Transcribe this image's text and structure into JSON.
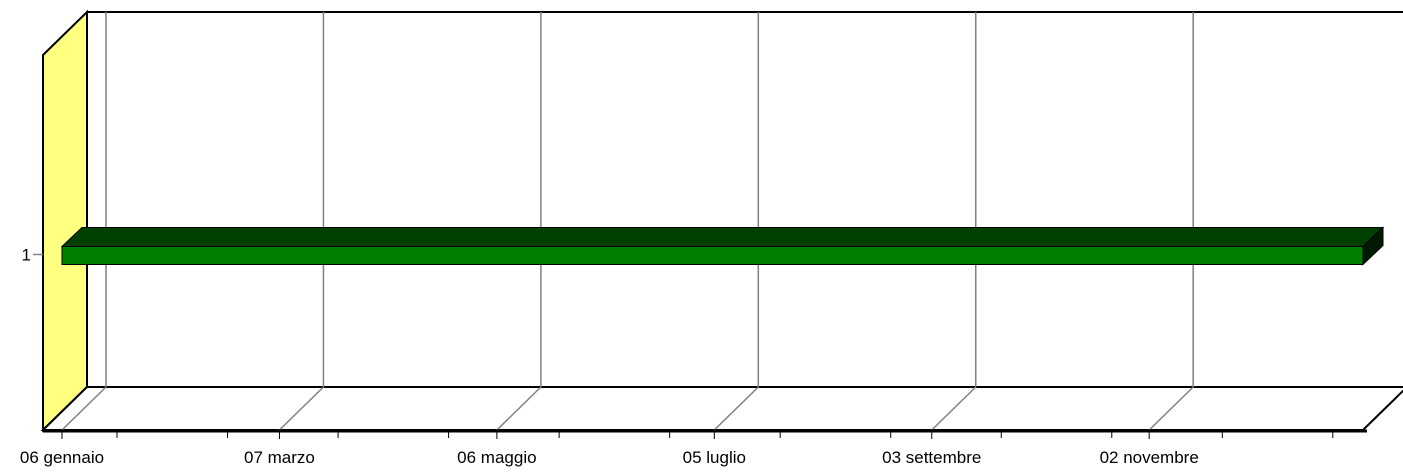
{
  "chart_data": {
    "type": "bar",
    "orientation": "horizontal",
    "three_d": true,
    "categories": [
      "1"
    ],
    "series": [
      {
        "values": [
          [
            "06 gennaio",
            "31 dicembre"
          ]
        ]
      }
    ],
    "x_tick_labels": [
      "06 gennaio",
      "07 marzo",
      "06 maggio",
      "05 luglio",
      "03 settembre",
      "02 novembre"
    ],
    "xlim": [
      "06 gennaio",
      "31 dicembre"
    ],
    "grid": true,
    "legend": "none",
    "colors": {
      "bar_front": "#008000",
      "bar_top": "#004000",
      "bar_side": "#001a00",
      "wall_side": "#ffff80",
      "gridline": "#808080",
      "axis": "#000000",
      "background": "#ffffff"
    }
  }
}
